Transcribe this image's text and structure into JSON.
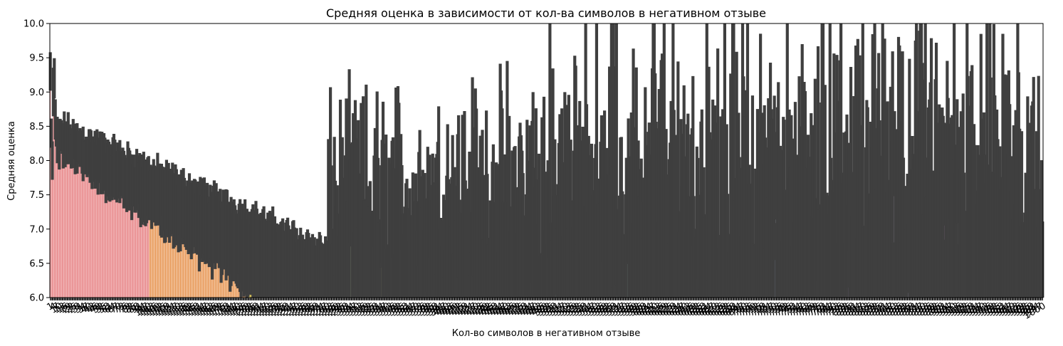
{
  "chart_data": {
    "type": "bar",
    "title": "Средняя оценка в зависимости от кол-ва символов в негативном отзыве",
    "xlabel": "Кол-во символов в негативном отзыве",
    "ylabel": "Средняя оценка",
    "ylim": [
      6.0,
      10.0
    ],
    "yticks": [
      "6.0",
      "6.5",
      "7.0",
      "7.5",
      "8.0",
      "8.5",
      "9.0",
      "9.5",
      "10.0"
    ],
    "grid": false,
    "legend": "none",
    "bar_count": 1000,
    "error_bar_color": "#3f3f3f",
    "palette": [
      "#e8888a",
      "#e89a5a",
      "#c9b03a",
      "#a8bd3c",
      "#6fc46a",
      "#4fc4a8",
      "#4ab8c9",
      "#6aa8e8",
      "#b07ae8",
      "#e07ad8"
    ],
    "key_values": {
      "first_bars": [
        9.3,
        8.4,
        8.0,
        9.0,
        9.2,
        8.6,
        8.4,
        8.3,
        8.3,
        8.2
      ],
      "mean_trend": "decreasing from ~8.4 near 1 char to ~6.0 by ~400 chars; bars beyond fall below 6.0 with large error bars up to 10.0"
    }
  }
}
